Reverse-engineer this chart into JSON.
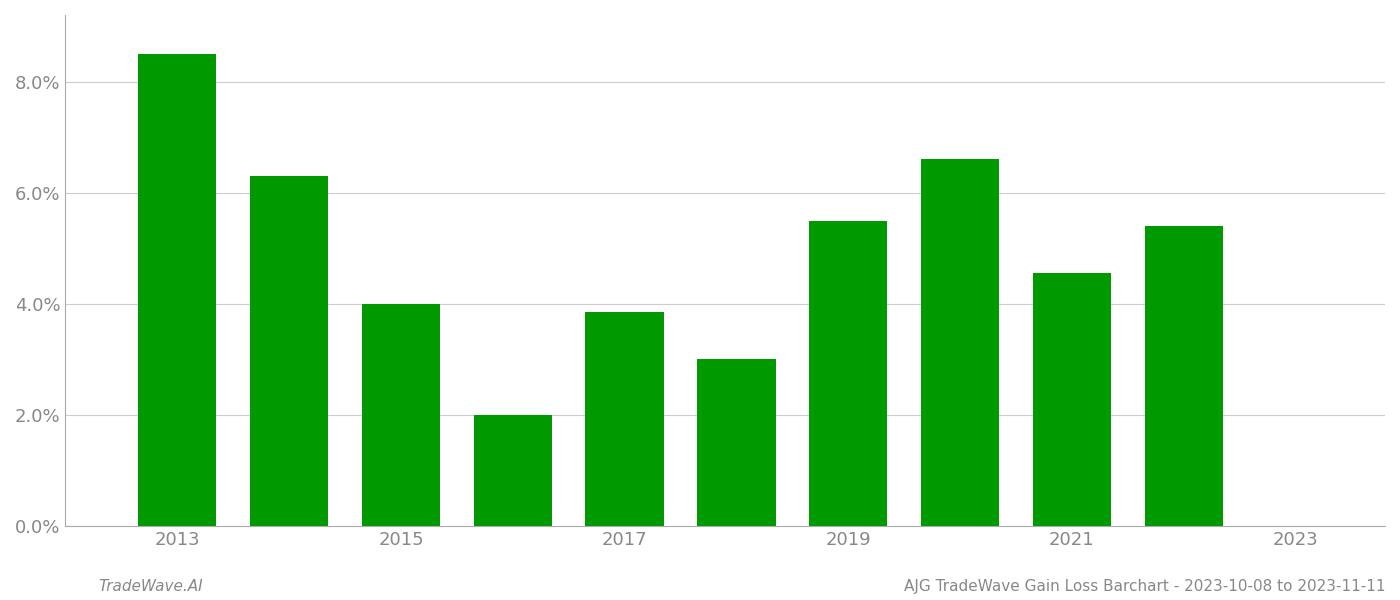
{
  "years": [
    2013,
    2014,
    2015,
    2016,
    2017,
    2018,
    2019,
    2020,
    2021,
    2022
  ],
  "values": [
    0.085,
    0.063,
    0.04,
    0.02,
    0.0385,
    0.03,
    0.055,
    0.066,
    0.0455,
    0.054
  ],
  "bar_color": "#009900",
  "background_color": "#ffffff",
  "ylim": [
    0,
    0.092
  ],
  "yticks": [
    0.0,
    0.02,
    0.04,
    0.06,
    0.08
  ],
  "xticks": [
    2013,
    2015,
    2017,
    2019,
    2021,
    2023
  ],
  "xlim_left": 2012.0,
  "xlim_right": 2023.8,
  "footer_left": "TradeWave.AI",
  "footer_right": "AJG TradeWave Gain Loss Barchart - 2023-10-08 to 2023-11-11",
  "grid_color": "#cccccc",
  "tick_label_color": "#888888",
  "footer_color": "#888888",
  "bar_width": 0.7,
  "font_size_ticks": 13,
  "font_size_footer": 11
}
